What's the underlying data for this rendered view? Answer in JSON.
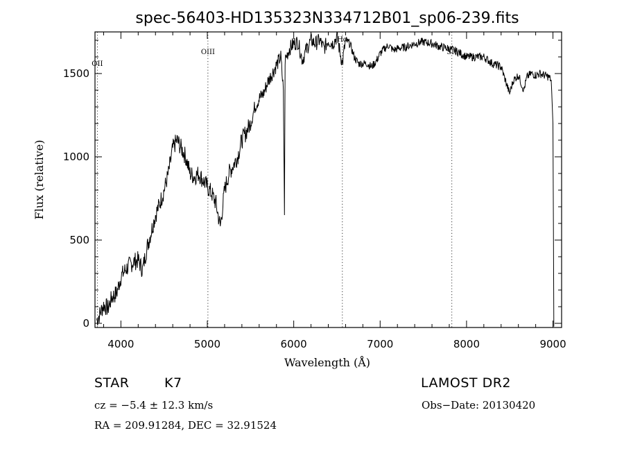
{
  "chart_data": {
    "type": "line",
    "title": "spec-56403-HD135323N334712B01_sp06-239.fits",
    "xlabel": "Wavelength (Å)",
    "ylabel": "Flux (relative)",
    "xlim": [
      3700,
      9100
    ],
    "ylim": [
      -25,
      1750
    ],
    "xticks": [
      4000,
      5000,
      6000,
      7000,
      8000,
      9000
    ],
    "yticks": [
      0,
      500,
      1000,
      1500
    ],
    "grid": false,
    "line_markers": [
      {
        "label": "OII",
        "x": 3727
      },
      {
        "label": "OIII",
        "x": 5007
      },
      {
        "label": "Hα",
        "x": 6563
      },
      {
        "label": "SII",
        "x": 7830
      }
    ],
    "series": [
      {
        "x": [
          3720,
          3760,
          3800,
          3850,
          3900,
          3950,
          4000,
          4050,
          4100,
          4150,
          4200,
          4250,
          4300,
          4350,
          4400,
          4450,
          4500,
          4550,
          4600,
          4650,
          4700,
          4750,
          4800,
          4850,
          4900,
          4950,
          5000,
          5050,
          5100,
          5150,
          5200,
          5250,
          5300,
          5350,
          5400,
          5450,
          5500,
          5550,
          5600,
          5650,
          5700,
          5750,
          5800,
          5850,
          5880,
          5893,
          5900,
          5950,
          6000,
          6050,
          6100,
          6150,
          6200,
          6250,
          6300,
          6350,
          6400,
          6450,
          6500,
          6563,
          6600,
          6650,
          6700,
          6750,
          6800,
          6850,
          6900,
          6950,
          7000,
          7050,
          7100,
          7150,
          7200,
          7300,
          7400,
          7500,
          7600,
          7700,
          7800,
          7900,
          8000,
          8100,
          8200,
          8300,
          8400,
          8498,
          8542,
          8600,
          8662,
          8700,
          8750,
          8800,
          8850,
          8900,
          8950,
          8980,
          9000,
          9010
        ],
        "values": [
          20,
          60,
          110,
          90,
          160,
          180,
          280,
          320,
          350,
          370,
          380,
          320,
          450,
          550,
          650,
          720,
          800,
          900,
          1050,
          1100,
          1050,
          1000,
          900,
          880,
          900,
          860,
          820,
          780,
          720,
          580,
          800,
          900,
          950,
          1000,
          1100,
          1150,
          1200,
          1300,
          1350,
          1380,
          1450,
          1500,
          1550,
          1600,
          1400,
          650,
          1580,
          1650,
          1680,
          1690,
          1580,
          1650,
          1700,
          1680,
          1700,
          1650,
          1700,
          1680,
          1720,
          1560,
          1700,
          1680,
          1600,
          1560,
          1560,
          1560,
          1540,
          1570,
          1620,
          1650,
          1670,
          1640,
          1650,
          1660,
          1680,
          1690,
          1680,
          1660,
          1650,
          1630,
          1600,
          1600,
          1600,
          1560,
          1540,
          1380,
          1460,
          1490,
          1400,
          1480,
          1500,
          1490,
          1500,
          1490,
          1480,
          1460,
          1200,
          -20
        ]
      }
    ]
  },
  "footer": {
    "object_class": "STAR",
    "subclass": "K7",
    "cz": "cz = −5.4 ± 12.3 km/s",
    "coords": "RA = 209.91284, DEC =  32.91524",
    "survey": "LAMOST DR2",
    "obs_date": "Obs−Date: 20130420"
  }
}
